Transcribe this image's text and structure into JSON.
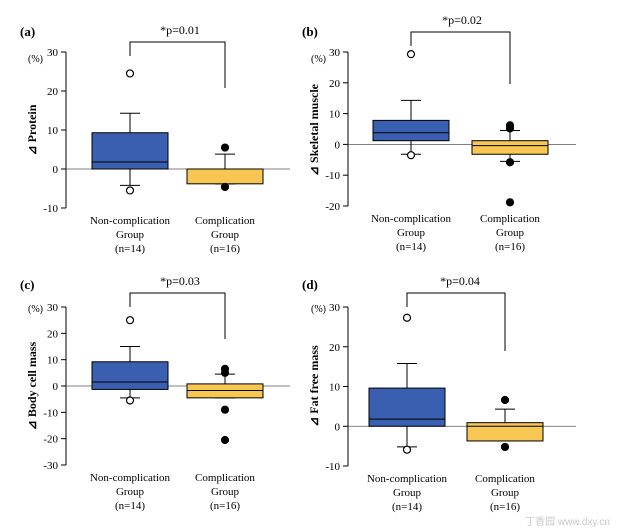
{
  "figure": {
    "watermark": "丁香园 www.dxy.cn"
  },
  "chart_data": [
    {
      "type": "box",
      "panel_label": "(a)",
      "ylabel": "⊿  Protein",
      "unit": "(%)",
      "ylim": [
        -10,
        30
      ],
      "yticks": [
        -10,
        0,
        10,
        20,
        30
      ],
      "annotation": "*p=0.01",
      "categories": [
        {
          "lines": [
            "Non-complication",
            "Group",
            "(n=14)"
          ]
        },
        {
          "lines": [
            "Complication",
            "Group",
            "(n=16)"
          ]
        }
      ],
      "series": [
        {
          "color": "#3b5fb0",
          "q1": 0,
          "median": 1.8,
          "q3": 9.3,
          "whisker_low": -4.2,
          "whisker_high": 14.3,
          "outliers": [
            {
              "y": 24.5,
              "filled": false
            },
            {
              "y": -5.5,
              "filled": false
            }
          ]
        },
        {
          "color": "#f7c653",
          "q1": -3.8,
          "median": 0,
          "q3": 0,
          "whisker_low": -3.8,
          "whisker_high": 3.8,
          "outliers": [
            {
              "y": 5.5,
              "filled": true
            },
            {
              "y": -4.6,
              "filled": true
            }
          ]
        }
      ]
    },
    {
      "type": "box",
      "panel_label": "(b)",
      "ylabel": "⊿  Skeletal muscle",
      "unit": "(%)",
      "ylim": [
        -20,
        30
      ],
      "yticks": [
        -20,
        -10,
        0,
        10,
        20,
        30
      ],
      "annotation": "*p=0.02",
      "categories": [
        {
          "lines": [
            "Non-complication",
            "Group",
            "(n=14)"
          ]
        },
        {
          "lines": [
            "Complication",
            "Group",
            "(n=16)"
          ]
        }
      ],
      "series": [
        {
          "color": "#3b5fb0",
          "q1": 1.2,
          "median": 3.8,
          "q3": 7.8,
          "whisker_low": -3.2,
          "whisker_high": 14.3,
          "outliers": [
            {
              "y": 29.3,
              "filled": false
            },
            {
              "y": -3.5,
              "filled": false
            }
          ]
        },
        {
          "color": "#f7c653",
          "q1": -3.2,
          "median": -0.4,
          "q3": 1.2,
          "whisker_low": -5.5,
          "whisker_high": 4.5,
          "outliers": [
            {
              "y": 6.2,
              "filled": true
            },
            {
              "y": 5.2,
              "filled": true
            },
            {
              "y": -5.8,
              "filled": true
            },
            {
              "y": -18.8,
              "filled": true
            }
          ]
        }
      ]
    },
    {
      "type": "box",
      "panel_label": "(c)",
      "ylabel": "⊿  Body cell mass",
      "unit": "(%)",
      "ylim": [
        -30,
        30
      ],
      "yticks": [
        -30,
        -20,
        -10,
        0,
        10,
        20,
        30
      ],
      "annotation": "*p=0.03",
      "categories": [
        {
          "lines": [
            "Non-complication",
            "Group",
            "(n=14)"
          ]
        },
        {
          "lines": [
            "Complication",
            "Group",
            "(n=16)"
          ]
        }
      ],
      "series": [
        {
          "color": "#3b5fb0",
          "q1": -1.3,
          "median": 1.5,
          "q3": 9.2,
          "whisker_low": -4.5,
          "whisker_high": 15.0,
          "outliers": [
            {
              "y": 25.0,
              "filled": false
            },
            {
              "y": -5.5,
              "filled": false
            }
          ]
        },
        {
          "color": "#f7c653",
          "q1": -4.5,
          "median": -1.7,
          "q3": 0.8,
          "whisker_low": -4.5,
          "whisker_high": 4.5,
          "outliers": [
            {
              "y": 6.5,
              "filled": true
            },
            {
              "y": 5.0,
              "filled": true
            },
            {
              "y": -9.0,
              "filled": true
            },
            {
              "y": -20.5,
              "filled": true
            }
          ]
        }
      ]
    },
    {
      "type": "box",
      "panel_label": "(d)",
      "ylabel": "⊿  Fat free mass",
      "unit": "(%)",
      "ylim": [
        -10,
        30
      ],
      "yticks": [
        -10,
        0,
        10,
        20,
        30
      ],
      "annotation": "*p=0.04",
      "categories": [
        {
          "lines": [
            "Non-complication",
            "Group",
            "(n=14)"
          ]
        },
        {
          "lines": [
            "Complication",
            "Group",
            "(n=16)"
          ]
        }
      ],
      "series": [
        {
          "color": "#3b5fb0",
          "q1": 0,
          "median": 1.8,
          "q3": 9.6,
          "whisker_low": -5.2,
          "whisker_high": 15.8,
          "outliers": [
            {
              "y": 27.3,
              "filled": false
            },
            {
              "y": -5.9,
              "filled": false
            }
          ]
        },
        {
          "color": "#f7c653",
          "q1": -3.7,
          "median": 0,
          "q3": 0.9,
          "whisker_low": -3.7,
          "whisker_high": 4.3,
          "outliers": [
            {
              "y": 6.6,
              "filled": true
            },
            {
              "y": -5.2,
              "filled": true
            }
          ]
        }
      ]
    }
  ]
}
